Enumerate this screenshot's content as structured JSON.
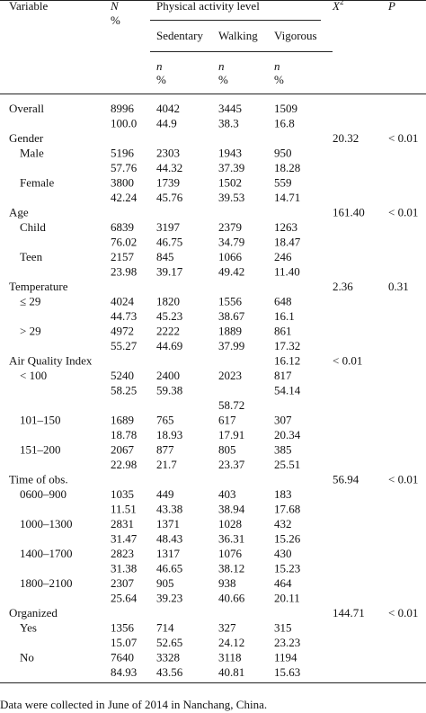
{
  "header": {
    "variable": "Variable",
    "n_label": "N",
    "n_pct": "%",
    "group": "Physical activity level",
    "levels": [
      "Sedentary",
      "Walking",
      "Vigorous"
    ],
    "sub_n": "n",
    "sub_pct": "%",
    "chi": "X",
    "chi_sup": "2",
    "p": "P"
  },
  "blocks": [
    {
      "rows": [
        [
          "Overall",
          "8996",
          "4042",
          "3445",
          "1509",
          null,
          null
        ],
        [
          null,
          "100.0",
          "44.9",
          "38.3",
          "16.8",
          null,
          null
        ]
      ]
    },
    {
      "rows": [
        [
          "Gender",
          null,
          null,
          null,
          null,
          "20.32",
          "< 0.01"
        ],
        [
          "Male",
          "5196",
          "2303",
          "1943",
          "950",
          null,
          null
        ],
        [
          null,
          "57.76",
          "44.32",
          "37.39",
          "18.28",
          null,
          null
        ],
        [
          "Female",
          "3800",
          "1739",
          "1502",
          "559",
          null,
          null
        ],
        [
          null,
          "42.24",
          "45.76",
          "39.53",
          "14.71",
          null,
          null
        ]
      ]
    },
    {
      "rows": [
        [
          "Age",
          null,
          null,
          null,
          null,
          "161.40",
          "< 0.01"
        ],
        [
          "Child",
          "6839",
          "3197",
          "2379",
          "1263",
          null,
          null
        ],
        [
          null,
          "76.02",
          "46.75",
          "34.79",
          "18.47",
          null,
          null
        ],
        [
          "Teen",
          "2157",
          "845",
          "1066",
          "246",
          null,
          null
        ],
        [
          null,
          "23.98",
          "39.17",
          "49.42",
          "11.40",
          null,
          null
        ]
      ]
    },
    {
      "rows": [
        [
          "Temperature",
          null,
          null,
          null,
          null,
          "2.36",
          "0.31"
        ],
        [
          "≤ 29",
          "4024",
          "1820",
          "1556",
          "648",
          null,
          null
        ],
        [
          null,
          "44.73",
          "45.23",
          "38.67",
          "16.1",
          null,
          null
        ],
        [
          "> 29",
          "4972",
          "2222",
          "1889",
          "861",
          null,
          null
        ],
        [
          null,
          "55.27",
          "44.69",
          "37.99",
          "17.32",
          null,
          null
        ]
      ]
    },
    {
      "rows": [
        [
          "Air Quality Index",
          null,
          null,
          null,
          "16.12",
          "< 0.01",
          null
        ],
        [
          "< 100",
          "5240",
          "2400",
          "2023",
          "817",
          null,
          null
        ],
        [
          null,
          "58.25",
          "59.38",
          null,
          "54.14",
          null,
          null
        ],
        [
          null,
          null,
          null,
          "58.72",
          null,
          null,
          null
        ],
        [
          "101–150",
          "1689",
          "765",
          "617",
          "307",
          null,
          null
        ],
        [
          null,
          "18.78",
          "18.93",
          "17.91",
          "20.34",
          null,
          null
        ],
        [
          "151–200",
          "2067",
          "877",
          "805",
          "385",
          null,
          null
        ],
        [
          null,
          "22.98",
          "21.7",
          "23.37",
          "25.51",
          null,
          null
        ]
      ]
    },
    {
      "rows": [
        [
          "Time of obs.",
          null,
          null,
          null,
          null,
          "56.94",
          "< 0.01"
        ],
        [
          "0600–900",
          "1035",
          "449",
          "403",
          "183",
          null,
          null
        ],
        [
          null,
          "11.51",
          "43.38",
          "38.94",
          "17.68",
          null,
          null
        ],
        [
          "1000–1300",
          "2831",
          "1371",
          "1028",
          "432",
          null,
          null
        ],
        [
          null,
          "31.47",
          "48.43",
          "36.31",
          "15.26",
          null,
          null
        ],
        [
          "1400–1700",
          "2823",
          "1317",
          "1076",
          "430",
          null,
          null
        ],
        [
          null,
          "31.38",
          "46.65",
          "38.12",
          "15.23",
          null,
          null
        ],
        [
          "1800–2100",
          "2307",
          "905",
          "938",
          "464",
          null,
          null
        ],
        [
          null,
          "25.64",
          "39.23",
          "40.66",
          "20.11",
          null,
          null
        ]
      ]
    },
    {
      "rows": [
        [
          "Organized",
          null,
          null,
          null,
          null,
          "144.71",
          "< 0.01"
        ],
        [
          "Yes",
          "1356",
          "714",
          "327",
          "315",
          null,
          null
        ],
        [
          null,
          "15.07",
          "52.65",
          "24.12",
          "23.23",
          null,
          null
        ],
        [
          "No",
          "7640",
          "3328",
          "3118",
          "1194",
          null,
          null
        ],
        [
          null,
          "84.93",
          "43.56",
          "40.81",
          "15.63",
          null,
          null
        ]
      ]
    }
  ],
  "footnote": "Data were collected in June of 2014 in Nanchang, China."
}
